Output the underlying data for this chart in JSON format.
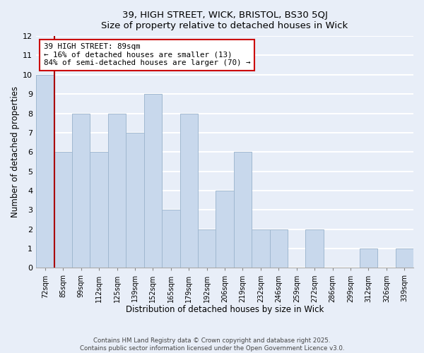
{
  "title_line1": "39, HIGH STREET, WICK, BRISTOL, BS30 5QJ",
  "title_line2": "Size of property relative to detached houses in Wick",
  "xlabel": "Distribution of detached houses by size in Wick",
  "ylabel": "Number of detached properties",
  "bins": [
    "72sqm",
    "85sqm",
    "99sqm",
    "112sqm",
    "125sqm",
    "139sqm",
    "152sqm",
    "165sqm",
    "179sqm",
    "192sqm",
    "206sqm",
    "219sqm",
    "232sqm",
    "246sqm",
    "259sqm",
    "272sqm",
    "286sqm",
    "299sqm",
    "312sqm",
    "326sqm",
    "339sqm"
  ],
  "values": [
    10,
    6,
    8,
    6,
    8,
    7,
    9,
    3,
    8,
    2,
    4,
    6,
    2,
    2,
    0,
    2,
    0,
    0,
    1,
    0,
    1
  ],
  "bar_color": "#c8d8ec",
  "bar_edge_color": "#a0b8d0",
  "background_color": "#e8eef8",
  "grid_color": "#ffffff",
  "marker_line_color": "#aa0000",
  "marker_bin_index": 1,
  "annotation_title": "39 HIGH STREET: 89sqm",
  "annotation_line1": "← 16% of detached houses are smaller (13)",
  "annotation_line2": "84% of semi-detached houses are larger (70) →",
  "annotation_box_color": "#ffffff",
  "annotation_box_edge": "#cc0000",
  "ylim": [
    0,
    12
  ],
  "yticks": [
    0,
    1,
    2,
    3,
    4,
    5,
    6,
    7,
    8,
    9,
    10,
    11,
    12
  ],
  "footer_line1": "Contains HM Land Registry data © Crown copyright and database right 2025.",
  "footer_line2": "Contains public sector information licensed under the Open Government Licence v3.0."
}
